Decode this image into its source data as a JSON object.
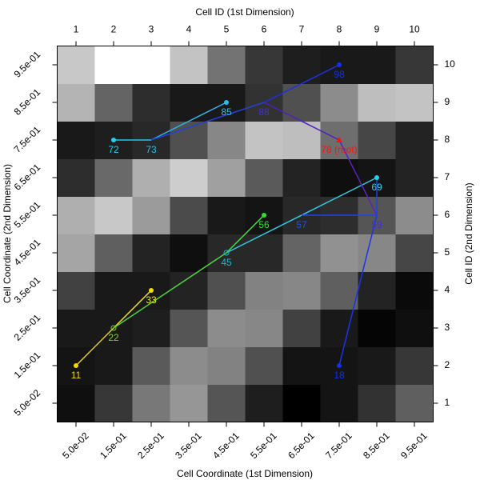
{
  "chart_data": {
    "type": "heatmap",
    "x_label": "Cell Coordinate (1st Dimension)",
    "x2_label": "Cell ID (1st Dimension)",
    "y_label": "Cell Coordinate (2nd Dimension)",
    "y2_label": "Cell ID (2nd Dimension)",
    "xlim": [
      0,
      1
    ],
    "ylim": [
      0,
      1
    ],
    "x2lim": [
      0.5,
      10.5
    ],
    "y2lim": [
      0.5,
      10.5
    ],
    "xticks": [
      {
        "value": 0.05,
        "label": "5.0e-02"
      },
      {
        "value": 0.15,
        "label": "1.5e-01"
      },
      {
        "value": 0.25,
        "label": "2.5e-01"
      },
      {
        "value": 0.35,
        "label": "3.5e-01"
      },
      {
        "value": 0.45,
        "label": "4.5e-01"
      },
      {
        "value": 0.55,
        "label": "5.5e-01"
      },
      {
        "value": 0.65,
        "label": "6.5e-01"
      },
      {
        "value": 0.75,
        "label": "7.5e-01"
      },
      {
        "value": 0.85,
        "label": "8.5e-01"
      },
      {
        "value": 0.95,
        "label": "9.5e-01"
      }
    ],
    "yticks": [
      {
        "value": 0.05,
        "label": "5.0e-02"
      },
      {
        "value": 0.15,
        "label": "1.5e-01"
      },
      {
        "value": 0.25,
        "label": "2.5e-01"
      },
      {
        "value": 0.35,
        "label": "3.5e-01"
      },
      {
        "value": 0.45,
        "label": "4.5e-01"
      },
      {
        "value": 0.55,
        "label": "5.5e-01"
      },
      {
        "value": 0.65,
        "label": "6.5e-01"
      },
      {
        "value": 0.75,
        "label": "7.5e-01"
      },
      {
        "value": 0.85,
        "label": "8.5e-01"
      },
      {
        "value": 0.95,
        "label": "9.5e-01"
      }
    ],
    "x2ticks": [
      1,
      2,
      3,
      4,
      5,
      6,
      7,
      8,
      9,
      10
    ],
    "y2ticks": [
      1,
      2,
      3,
      4,
      5,
      6,
      7,
      8,
      9,
      10
    ],
    "z": [
      [
        15,
        55,
        120,
        150,
        85,
        30,
        0,
        20,
        50,
        95
      ],
      [
        20,
        25,
        90,
        140,
        130,
        80,
        20,
        20,
        25,
        55
      ],
      [
        25,
        25,
        30,
        85,
        140,
        135,
        65,
        25,
        5,
        15
      ],
      [
        65,
        25,
        25,
        35,
        80,
        130,
        135,
        95,
        35,
        10
      ],
      [
        165,
        95,
        35,
        15,
        40,
        40,
        100,
        145,
        135,
        70
      ],
      [
        175,
        200,
        155,
        75,
        25,
        20,
        40,
        45,
        85,
        140
      ],
      [
        45,
        105,
        175,
        205,
        160,
        90,
        35,
        15,
        20,
        35
      ],
      [
        25,
        30,
        40,
        80,
        135,
        195,
        190,
        110,
        70,
        35
      ],
      [
        180,
        100,
        45,
        25,
        25,
        50,
        80,
        140,
        190,
        195
      ],
      [
        200,
        255,
        255,
        195,
        115,
        55,
        30,
        25,
        25,
        55
      ]
    ],
    "edges": [
      {
        "x": [
          1,
          2
        ],
        "y": [
          2,
          3
        ],
        "color": "#e8d020"
      },
      {
        "x": [
          2,
          3
        ],
        "y": [
          3,
          4
        ],
        "color": "#f0e020"
      },
      {
        "x": [
          2,
          5
        ],
        "y": [
          3,
          5
        ],
        "color": "#50d040"
      },
      {
        "x": [
          5,
          6
        ],
        "y": [
          5,
          6
        ],
        "color": "#40e040"
      },
      {
        "x": [
          5,
          9
        ],
        "y": [
          5,
          7
        ],
        "color": "#30c8e0"
      },
      {
        "x": [
          2,
          3
        ],
        "y": [
          8,
          8
        ],
        "color": "#20c8e8"
      },
      {
        "x": [
          3,
          5
        ],
        "y": [
          8,
          9
        ],
        "color": "#30b0e0"
      },
      {
        "x": [
          3,
          6
        ],
        "y": [
          8,
          9
        ],
        "color": "#2040e0"
      },
      {
        "x": [
          6,
          8
        ],
        "y": [
          9,
          10
        ],
        "color": "#2030e0"
      },
      {
        "x": [
          6,
          8
        ],
        "y": [
          9,
          8
        ],
        "color": "#5020c0"
      },
      {
        "x": [
          8,
          9
        ],
        "y": [
          8,
          6
        ],
        "color": "#6020c0"
      },
      {
        "x": [
          9,
          9
        ],
        "y": [
          7,
          6
        ],
        "color": "#2040e8"
      },
      {
        "x": [
          9,
          7
        ],
        "y": [
          6,
          6
        ],
        "color": "#2040f0"
      },
      {
        "x": [
          9,
          8
        ],
        "y": [
          6,
          2
        ],
        "color": "#2030f0"
      }
    ],
    "nodes": [
      {
        "label": "11",
        "x": 1,
        "y": 2,
        "color": "#f0d800",
        "marker": "filled"
      },
      {
        "label": "22",
        "x": 2,
        "y": 3,
        "color": "#80d020",
        "marker": "open"
      },
      {
        "label": "33",
        "x": 3,
        "y": 4,
        "color": "#f0e000",
        "marker": "filled"
      },
      {
        "label": "45",
        "x": 5,
        "y": 5,
        "color": "#20b8d0",
        "marker": "open"
      },
      {
        "label": "56",
        "x": 6,
        "y": 6,
        "color": "#30e030",
        "marker": "filled"
      },
      {
        "label": "57",
        "x": 7,
        "y": 6,
        "color": "#2050f0"
      },
      {
        "label": "59",
        "x": 9,
        "y": 6,
        "color": "#4030d0"
      },
      {
        "label": "69",
        "x": 9,
        "y": 7,
        "color": "#20d0f0",
        "marker": "filled"
      },
      {
        "label": "72",
        "x": 2,
        "y": 8,
        "color": "#20d0f0",
        "marker": "filled"
      },
      {
        "label": "73",
        "x": 3,
        "y": 8,
        "color": "#20c0f0"
      },
      {
        "label": "78 (root)",
        "x": 8,
        "y": 8,
        "color": "#ff1010",
        "marker": "triangle"
      },
      {
        "label": "85",
        "x": 5,
        "y": 9,
        "color": "#20c0f0",
        "marker": "filled"
      },
      {
        "label": "88",
        "x": 6,
        "y": 9,
        "color": "#4030d0"
      },
      {
        "label": "98",
        "x": 8,
        "y": 10,
        "color": "#1030f0",
        "marker": "filled"
      },
      {
        "label": "18",
        "x": 8,
        "y": 2,
        "color": "#1030f0",
        "marker": "filled"
      }
    ]
  }
}
